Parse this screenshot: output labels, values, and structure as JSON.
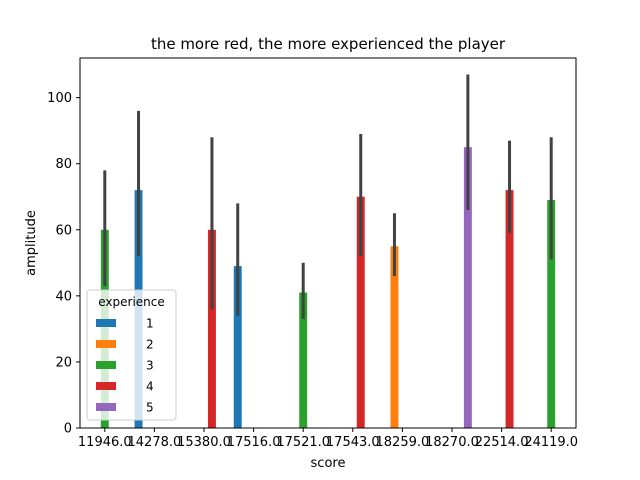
{
  "chart_data": {
    "type": "bar",
    "title": "the more red, the more experienced the player",
    "xlabel": "score",
    "ylabel": "amplitude",
    "ylim": [
      0,
      112
    ],
    "yticks": [
      0,
      20,
      40,
      60,
      80,
      100
    ],
    "categories": [
      "11946.0",
      "14278.0",
      "15380.0",
      "17516.0",
      "17521.0",
      "17543.0",
      "18259.0",
      "18270.0",
      "22514.0",
      "24119.0"
    ],
    "grid": false,
    "legend": {
      "title": "experience",
      "placement": "lower-left",
      "entries": [
        {
          "label": "1",
          "color": "#1f77b4"
        },
        {
          "label": "2",
          "color": "#ff7f0e"
        },
        {
          "label": "3",
          "color": "#2ca02c"
        },
        {
          "label": "4",
          "color": "#d62728"
        },
        {
          "label": "5",
          "color": "#9467bd"
        }
      ]
    },
    "hue_order": [
      "1",
      "2",
      "3",
      "4",
      "5"
    ],
    "bars": [
      {
        "category": "11946.0",
        "experience": "3",
        "value": 60,
        "ci": [
          43,
          78
        ]
      },
      {
        "category": "14278.0",
        "experience": "1",
        "value": 72,
        "ci": [
          52,
          96
        ]
      },
      {
        "category": "15380.0",
        "experience": "4",
        "value": 60,
        "ci": [
          36,
          88
        ]
      },
      {
        "category": "17516.0",
        "experience": "1",
        "value": 49,
        "ci": [
          34,
          68
        ]
      },
      {
        "category": "17521.0",
        "experience": "3",
        "value": 41,
        "ci": [
          33,
          50
        ]
      },
      {
        "category": "17543.0",
        "experience": "4",
        "value": 70,
        "ci": [
          52,
          89
        ]
      },
      {
        "category": "18259.0",
        "experience": "2",
        "value": 55,
        "ci": [
          46,
          65
        ]
      },
      {
        "category": "18270.0",
        "experience": "5",
        "value": 85,
        "ci": [
          66,
          107
        ]
      },
      {
        "category": "22514.0",
        "experience": "4",
        "value": 72,
        "ci": [
          59,
          87
        ]
      },
      {
        "category": "24119.0",
        "experience": "3",
        "value": 69,
        "ci": [
          51,
          88
        ]
      }
    ],
    "errorbar_color": "#424242"
  }
}
